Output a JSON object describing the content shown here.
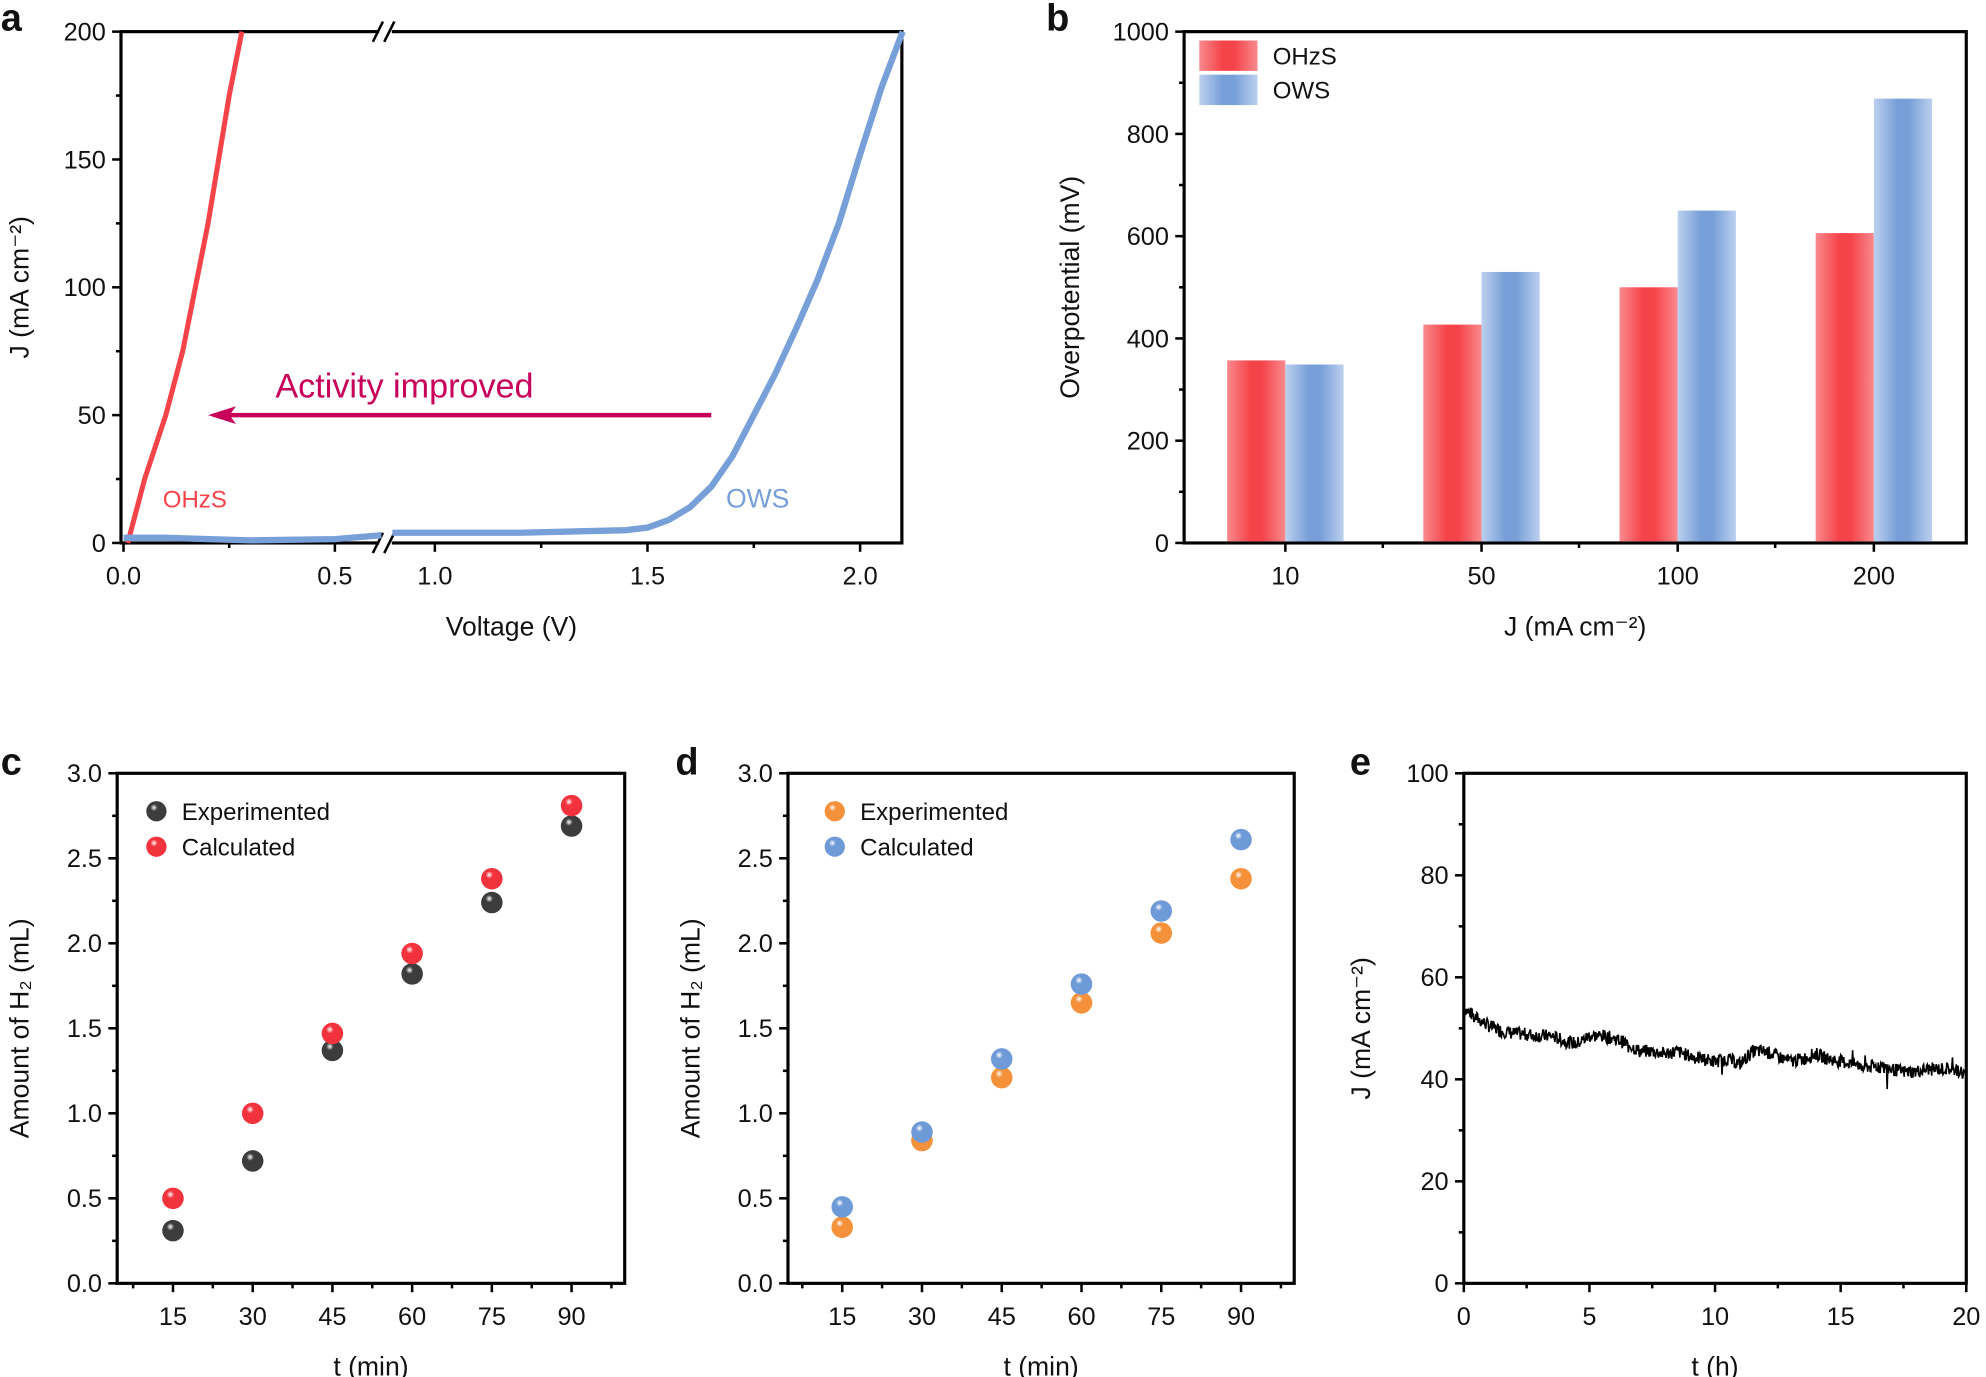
{
  "chart_data": [
    {
      "panel": "a",
      "type": "line",
      "xlabel": "Voltage (V)",
      "ylabel": "J (mA cm⁻²)",
      "xlim": [
        0,
        2.1
      ],
      "x_axis_break": [
        0.61,
        0.9
      ],
      "ylim": [
        0,
        200
      ],
      "xticks": [
        "0.0",
        "0.5",
        "1.0",
        "1.5",
        "2.0"
      ],
      "yticks": [
        "0",
        "50",
        "100",
        "150",
        "200"
      ],
      "grid": false,
      "annotation": {
        "text": "Activity improved",
        "arrow_from": [
          1.65,
          50
        ],
        "arrow_to": [
          0.2,
          50
        ],
        "color": "#c8005a"
      },
      "series": [
        {
          "name": "OHzS",
          "color": "#f5434a",
          "x": [
            0.01,
            0.05,
            0.1,
            0.14,
            0.17,
            0.2,
            0.225,
            0.25,
            0.28
          ],
          "y": [
            0,
            25,
            50,
            75,
            100,
            125,
            150,
            175,
            200
          ]
        },
        {
          "name": "OWS",
          "color": "#779fd8",
          "x": [
            0,
            0.1,
            0.3,
            0.5,
            0.61,
            0.9,
            1.2,
            1.45,
            1.5,
            1.55,
            1.6,
            1.65,
            1.7,
            1.75,
            1.8,
            1.85,
            1.9,
            1.95,
            2.0,
            2.05,
            2.1
          ],
          "y": [
            2,
            2,
            1,
            1.5,
            3,
            4,
            4,
            5,
            6,
            9,
            14,
            22,
            34,
            50,
            66,
            84,
            103,
            125,
            152,
            178,
            200
          ]
        }
      ]
    },
    {
      "panel": "b",
      "type": "bar",
      "xlabel": "J (mA cm⁻²)",
      "ylabel": "Overpotential (mV)",
      "categories": [
        "10",
        "50",
        "100",
        "200"
      ],
      "ylim": [
        0,
        1000
      ],
      "yticks": [
        "0",
        "200",
        "400",
        "600",
        "800",
        "1000"
      ],
      "legend": "top-left",
      "grid": false,
      "series": [
        {
          "name": "OHzS",
          "color": "#f5434a",
          "values": [
            357,
            427,
            500,
            606
          ]
        },
        {
          "name": "OWS",
          "color": "#779fd8",
          "values": [
            349,
            530,
            650,
            869
          ]
        }
      ]
    },
    {
      "panel": "c",
      "type": "scatter",
      "xlabel": "t (min)",
      "ylabel": "Amount of H₂ (mL)",
      "xlim": [
        4.5,
        100
      ],
      "ylim": [
        0,
        3
      ],
      "xticks": [
        "15",
        "30",
        "45",
        "60",
        "75",
        "90"
      ],
      "yticks": [
        "0.0",
        "0.5",
        "1.0",
        "1.5",
        "2.0",
        "2.5",
        "3.0"
      ],
      "legend": "top-left",
      "grid": false,
      "x": [
        15,
        30,
        45,
        60,
        75,
        90
      ],
      "series": [
        {
          "name": "Experimented",
          "color": "#3c3c3c",
          "values": [
            0.31,
            0.72,
            1.37,
            1.82,
            2.24,
            2.69
          ]
        },
        {
          "name": "Calculated",
          "color": "#f2333d",
          "values": [
            0.5,
            1.0,
            1.47,
            1.94,
            2.38,
            2.81
          ]
        }
      ]
    },
    {
      "panel": "d",
      "type": "scatter",
      "xlabel": "t (min)",
      "ylabel": "Amount of H₂ (mL)",
      "xlim": [
        4.8,
        100
      ],
      "ylim": [
        0,
        3
      ],
      "xticks": [
        "15",
        "30",
        "45",
        "60",
        "75",
        "90"
      ],
      "yticks": [
        "0.0",
        "0.5",
        "1.0",
        "1.5",
        "2.0",
        "2.5",
        "3.0"
      ],
      "legend": "top-left",
      "grid": false,
      "x": [
        15,
        30,
        45,
        60,
        75,
        90
      ],
      "series": [
        {
          "name": "Experimented",
          "color": "#f5913a",
          "values": [
            0.33,
            0.84,
            1.21,
            1.65,
            2.06,
            2.38
          ]
        },
        {
          "name": "Calculated",
          "color": "#6f9ad8",
          "values": [
            0.45,
            0.89,
            1.32,
            1.76,
            2.19,
            2.61
          ]
        }
      ]
    },
    {
      "panel": "e",
      "type": "line",
      "xlabel": "t (h)",
      "ylabel": "J (mA cm⁻²)",
      "xlim": [
        0,
        20
      ],
      "ylim": [
        0,
        100
      ],
      "xticks": [
        "0",
        "5",
        "10",
        "15",
        "20"
      ],
      "yticks": [
        "0",
        "20",
        "40",
        "60",
        "80",
        "100"
      ],
      "grid": false,
      "series": [
        {
          "color": "#000000",
          "x": [
            0,
            0.5,
            1,
            1.5,
            2,
            2.5,
            3,
            3.5,
            4,
            4.5,
            5,
            5.5,
            6,
            6.5,
            7,
            7.5,
            8,
            8.5,
            9,
            9.5,
            10,
            10.5,
            11,
            11.5,
            12,
            12.5,
            13,
            13.5,
            14,
            14.5,
            15,
            15.5,
            16,
            16.5,
            17,
            17.5,
            18,
            18.5,
            19,
            19.5,
            20
          ],
          "y": [
            54,
            52,
            50.5,
            49.5,
            49,
            48.8,
            48.5,
            48.5,
            47.5,
            47,
            48.5,
            48.5,
            48,
            47,
            45.5,
            45.5,
            45,
            45.5,
            44.5,
            44,
            43.5,
            44,
            43,
            45.5,
            45.5,
            44.5,
            43.5,
            44,
            45,
            44,
            43.5,
            43,
            42.5,
            42.5,
            42,
            41.5,
            41.5,
            42,
            42,
            42,
            41
          ]
        }
      ]
    }
  ]
}
